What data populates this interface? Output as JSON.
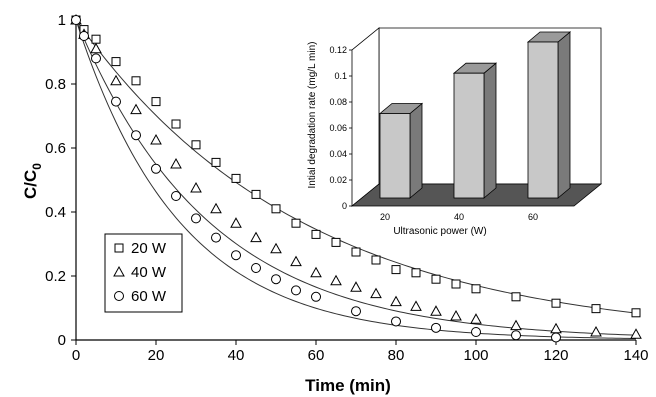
{
  "chart_data": [
    {
      "type": "scatter",
      "xlabel": "Time (min)",
      "ylabel_main": "C/C",
      "ylabel_sub": "0",
      "xlim": [
        0,
        140
      ],
      "ylim": [
        0,
        1
      ],
      "x_ticks": [
        "0",
        "20",
        "40",
        "60",
        "80",
        "100",
        "120",
        "140"
      ],
      "y_ticks": [
        "0",
        "0.2",
        "0.4",
        "0.6",
        "0.8",
        "1"
      ],
      "legend_position": "left-middle",
      "grid": false,
      "series": [
        {
          "name": "20 W",
          "marker": "square",
          "x": [
            0,
            2,
            5,
            10,
            15,
            20,
            25,
            30,
            35,
            40,
            45,
            50,
            55,
            60,
            65,
            70,
            75,
            80,
            85,
            90,
            95,
            100,
            110,
            120,
            130,
            140
          ],
          "y": [
            1.0,
            0.97,
            0.94,
            0.87,
            0.81,
            0.745,
            0.675,
            0.61,
            0.555,
            0.505,
            0.455,
            0.41,
            0.365,
            0.33,
            0.305,
            0.275,
            0.25,
            0.22,
            0.21,
            0.19,
            0.175,
            0.16,
            0.135,
            0.115,
            0.098,
            0.085
          ]
        },
        {
          "name": "40 W",
          "marker": "triangle",
          "x": [
            0,
            2,
            5,
            10,
            15,
            20,
            25,
            30,
            35,
            40,
            45,
            50,
            55,
            60,
            65,
            70,
            75,
            80,
            85,
            90,
            95,
            100,
            110,
            120,
            130,
            140
          ],
          "y": [
            1.0,
            0.955,
            0.91,
            0.81,
            0.72,
            0.625,
            0.55,
            0.475,
            0.41,
            0.365,
            0.32,
            0.285,
            0.245,
            0.21,
            0.185,
            0.165,
            0.145,
            0.12,
            0.105,
            0.09,
            0.075,
            0.065,
            0.045,
            0.035,
            0.025,
            0.018
          ]
        },
        {
          "name": "60 W",
          "marker": "circle",
          "x": [
            0,
            2,
            5,
            10,
            15,
            20,
            25,
            30,
            35,
            40,
            45,
            50,
            55,
            60,
            70,
            80,
            90,
            100,
            110,
            120
          ],
          "y": [
            1.0,
            0.95,
            0.88,
            0.745,
            0.64,
            0.535,
            0.45,
            0.38,
            0.32,
            0.265,
            0.225,
            0.19,
            0.155,
            0.135,
            0.09,
            0.058,
            0.038,
            0.025,
            0.015,
            0.008
          ]
        }
      ],
      "fits": [
        {
          "k": 0.0177,
          "tail": 0.0
        },
        {
          "k": 0.03,
          "tail": 0.0
        },
        {
          "k": 0.0385,
          "tail": 0.0
        }
      ]
    },
    {
      "type": "bar",
      "title": "",
      "xlabel": "Ultrasonic power (W)",
      "ylabel": "Intial degradation rate (mg/L min)",
      "categories": [
        "20",
        "40",
        "60"
      ],
      "values": [
        0.065,
        0.096,
        0.12
      ],
      "ylim": [
        0,
        0.12
      ],
      "y_ticks": [
        "0",
        "0.02",
        "0.04",
        "0.06",
        "0.08",
        "0.1",
        "0.12"
      ],
      "grid": false
    }
  ]
}
